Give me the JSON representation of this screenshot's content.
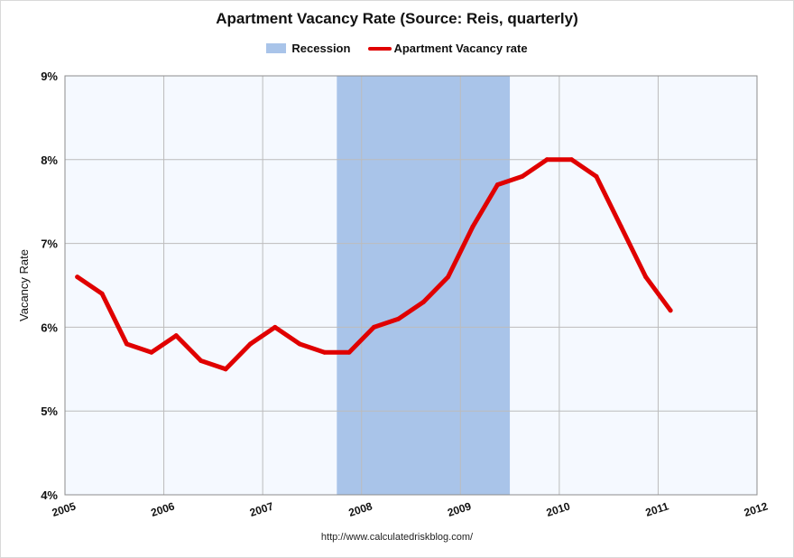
{
  "chart_data": {
    "type": "line",
    "title": "Apartment Vacancy Rate (Source: Reis, quarterly)",
    "ylabel": "Vacancy Rate",
    "xlabel": "",
    "ylim": [
      4,
      9
    ],
    "xlim": [
      2005,
      2012
    ],
    "x_ticks": [
      "2005",
      "2006",
      "2007",
      "2008",
      "2009",
      "2010",
      "2011",
      "2012"
    ],
    "y_ticks": [
      "4%",
      "5%",
      "6%",
      "7%",
      "8%",
      "9%"
    ],
    "grid": true,
    "legend_position": "top-center",
    "recession": {
      "name": "Recession",
      "start": 2007.75,
      "end": 2009.5
    },
    "series": [
      {
        "name": "Apartment Vacancy rate",
        "x": [
          2005.125,
          2005.375,
          2005.625,
          2005.875,
          2006.125,
          2006.375,
          2006.625,
          2006.875,
          2007.125,
          2007.375,
          2007.625,
          2007.875,
          2008.125,
          2008.375,
          2008.625,
          2008.875,
          2009.125,
          2009.375,
          2009.625,
          2009.875,
          2010.125,
          2010.375,
          2010.625,
          2010.875,
          2011.125
        ],
        "values": [
          6.6,
          6.4,
          5.8,
          5.7,
          5.9,
          5.6,
          5.5,
          5.8,
          6.0,
          5.8,
          5.7,
          5.7,
          6.0,
          6.1,
          6.3,
          6.6,
          7.2,
          7.7,
          7.8,
          8.0,
          8.0,
          7.8,
          7.2,
          6.6,
          6.2
        ]
      }
    ],
    "colors": {
      "line": "#e00000",
      "recession": "#a9c4e9",
      "plot_bg": "#f5f9ff",
      "grid": "#bcbcbc"
    },
    "source": "http://www.calculatedriskblog.com/"
  }
}
